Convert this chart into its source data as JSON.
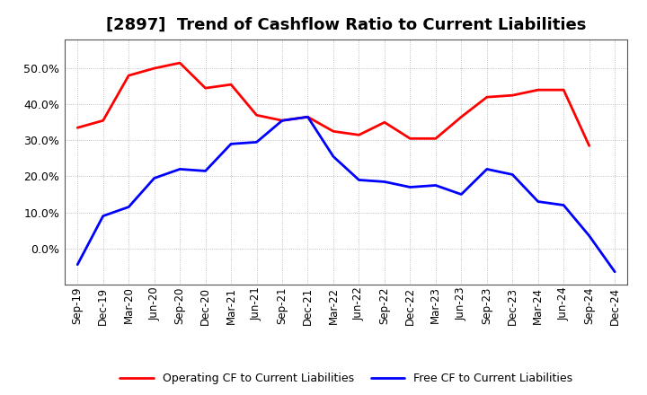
{
  "title": "[2897]  Trend of Cashflow Ratio to Current Liabilities",
  "x_labels": [
    "Sep-19",
    "Dec-19",
    "Mar-20",
    "Jun-20",
    "Sep-20",
    "Dec-20",
    "Mar-21",
    "Jun-21",
    "Sep-21",
    "Dec-21",
    "Mar-22",
    "Jun-22",
    "Sep-22",
    "Dec-22",
    "Mar-23",
    "Jun-23",
    "Sep-23",
    "Dec-23",
    "Mar-24",
    "Jun-24",
    "Sep-24",
    "Dec-24"
  ],
  "operating_cf": [
    0.335,
    0.355,
    0.48,
    0.5,
    0.515,
    0.445,
    0.455,
    0.37,
    0.355,
    0.365,
    0.325,
    0.315,
    0.35,
    0.305,
    0.305,
    0.365,
    0.42,
    0.425,
    0.44,
    0.44,
    0.285,
    null
  ],
  "free_cf": [
    -0.045,
    0.09,
    0.115,
    0.195,
    0.22,
    0.215,
    0.29,
    0.295,
    0.355,
    0.365,
    0.255,
    0.19,
    0.185,
    0.17,
    0.175,
    0.15,
    0.22,
    0.205,
    0.13,
    0.12,
    0.035,
    -0.065
  ],
  "ylim": [
    -0.1,
    0.58
  ],
  "yticks": [
    0.0,
    0.1,
    0.2,
    0.3,
    0.4,
    0.5
  ],
  "operating_color": "#ff0000",
  "free_color": "#0000ff",
  "background_color": "#ffffff",
  "grid_color": "#999999",
  "legend_labels": [
    "Operating CF to Current Liabilities",
    "Free CF to Current Liabilities"
  ],
  "title_fontsize": 13,
  "tick_fontsize": 8.5,
  "ytick_fontsize": 9,
  "legend_fontsize": 9,
  "linewidth": 2.0
}
